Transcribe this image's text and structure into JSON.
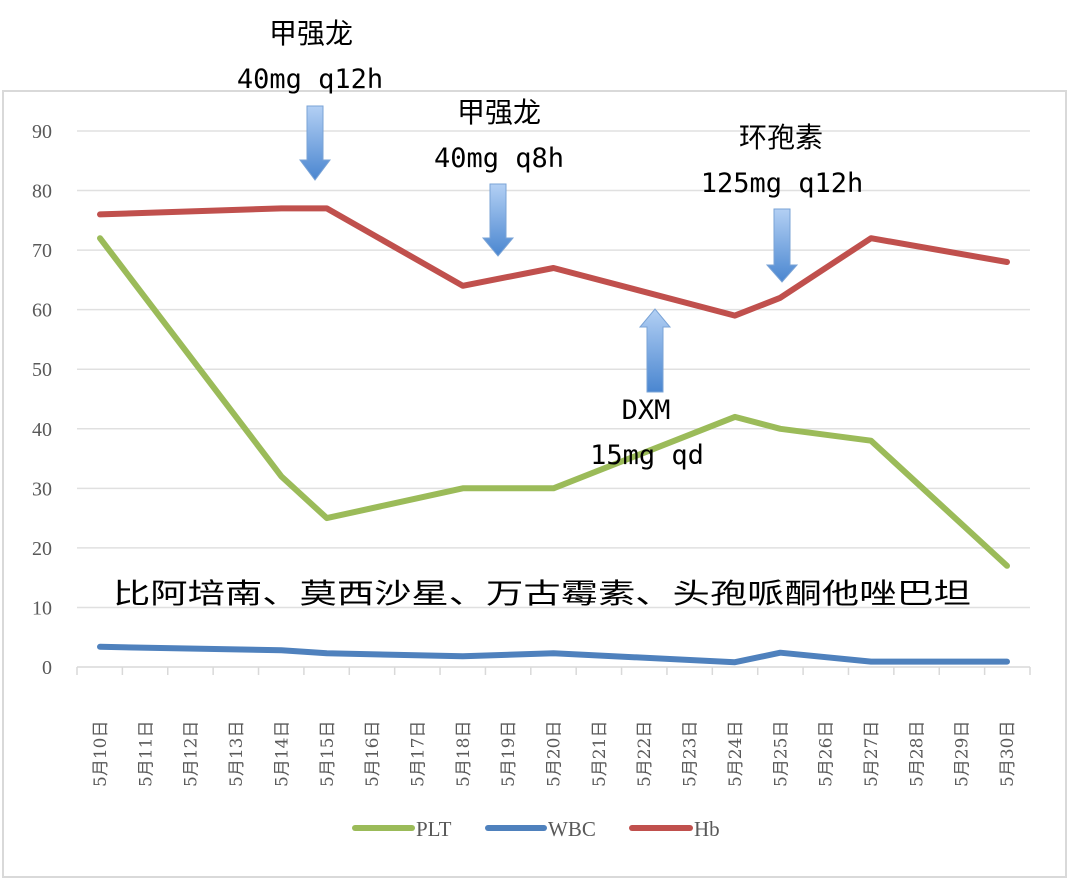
{
  "chart_data": {
    "type": "line",
    "title": "",
    "xlabel": "",
    "ylabel": "",
    "ylim": [
      0,
      90
    ],
    "yticks": [
      0,
      10,
      20,
      30,
      40,
      50,
      60,
      70,
      80,
      90
    ],
    "grid": true,
    "legend_position": "bottom",
    "categories": [
      "5月10日",
      "5月11日",
      "5月12日",
      "5月13日",
      "5月14日",
      "5月15日",
      "5月16日",
      "5月17日",
      "5月18日",
      "5月19日",
      "5月20日",
      "5月21日",
      "5月22日",
      "5月23日",
      "5月24日",
      "5月25日",
      "5月26日",
      "5月27日",
      "5月28日",
      "5月29日",
      "5月30日"
    ],
    "series": [
      {
        "name": "PLT",
        "color": "#9bbb59",
        "points": [
          {
            "x": "5月10日",
            "y": 72
          },
          {
            "x": "5月14日",
            "y": 32
          },
          {
            "x": "5月15日",
            "y": 25
          },
          {
            "x": "5月18日",
            "y": 30
          },
          {
            "x": "5月20日",
            "y": 30
          },
          {
            "x": "5月24日",
            "y": 42
          },
          {
            "x": "5月25日",
            "y": 40
          },
          {
            "x": "5月27日",
            "y": 38
          },
          {
            "x": "5月30日",
            "y": 17
          }
        ]
      },
      {
        "name": "WBC",
        "color": "#4f81bd",
        "points": [
          {
            "x": "5月10日",
            "y": 3.4
          },
          {
            "x": "5月14日",
            "y": 2.8
          },
          {
            "x": "5月15日",
            "y": 2.3
          },
          {
            "x": "5月18日",
            "y": 1.8
          },
          {
            "x": "5月20日",
            "y": 2.3
          },
          {
            "x": "5月24日",
            "y": 0.8
          },
          {
            "x": "5月25日",
            "y": 2.4
          },
          {
            "x": "5月27日",
            "y": 0.9
          },
          {
            "x": "5月30日",
            "y": 0.9
          }
        ]
      },
      {
        "name": "Hb",
        "color": "#c0504d",
        "points": [
          {
            "x": "5月10日",
            "y": 76
          },
          {
            "x": "5月14日",
            "y": 77
          },
          {
            "x": "5月15日",
            "y": 77
          },
          {
            "x": "5月18日",
            "y": 64
          },
          {
            "x": "5月20日",
            "y": 67
          },
          {
            "x": "5月24日",
            "y": 59
          },
          {
            "x": "5月25日",
            "y": 62
          },
          {
            "x": "5月27日",
            "y": 72
          },
          {
            "x": "5月30日",
            "y": 68
          }
        ]
      }
    ],
    "annotations": [
      {
        "line1": "甲强龙",
        "line2": "40mg q12h",
        "at": "5月15日",
        "arrow": "down"
      },
      {
        "line1": "甲强龙",
        "line2": "40mg q8h",
        "at": "5月19日",
        "arrow": "down"
      },
      {
        "line1": "环孢素",
        "line2": "125mg q12h",
        "at": "5月25日",
        "arrow": "down"
      },
      {
        "line1": "DXM",
        "line2": "15mg qd",
        "at": "5月22日",
        "arrow": "up"
      },
      {
        "text": "比阿培南、莫西沙星、万古霉素、头孢哌酮他唑巴坦"
      }
    ]
  },
  "legend": [
    {
      "label": "PLT",
      "color": "#9bbb59"
    },
    {
      "label": "WBC",
      "color": "#4f81bd"
    },
    {
      "label": "Hb",
      "color": "#c0504d"
    }
  ],
  "annotations": {
    "a1_line1": "甲强龙",
    "a1_line2": "40mg q12h",
    "a2_line1": "甲强龙",
    "a2_line2": "40mg q8h",
    "a3_line1": "环孢素",
    "a3_line2": "125mg q12h",
    "a4_line1": "DXM",
    "a4_line2": "15mg qd",
    "antibiotics": "比阿培南、莫西沙星、万古霉素、头孢哌酮他唑巴坦"
  },
  "colors": {
    "arrow_fill_top": "#a9c8f0",
    "arrow_fill_bottom": "#4a86d0",
    "arrow_stroke": "#7aa3d6"
  }
}
